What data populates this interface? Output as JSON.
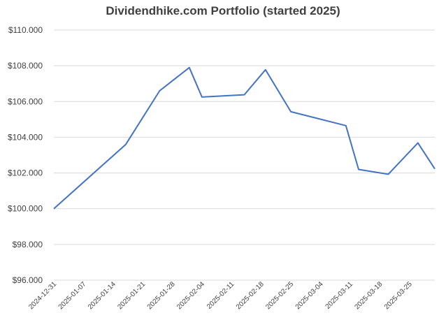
{
  "chart_data": {
    "type": "line",
    "title": "Dividendhike.com Portfolio (started 2025)",
    "xlabel": "",
    "ylabel": "",
    "ylim": [
      96000,
      110000
    ],
    "y_ticks": [
      96000,
      98000,
      100000,
      102000,
      104000,
      106000,
      108000,
      110000
    ],
    "y_tick_labels": [
      "$96.000",
      "$98.000",
      "$100.000",
      "$102.000",
      "$104.000",
      "$106.000",
      "$108.000",
      "$110.000"
    ],
    "x_range": [
      "2024-12-31",
      "2025-03-31"
    ],
    "x_tick_labels": [
      "2024-12-31",
      "2025-01-07",
      "2025-01-14",
      "2025-01-21",
      "2025-01-28",
      "2025-02-04",
      "2025-02-11",
      "2025-02-18",
      "2025-02-25",
      "2025-03-04",
      "2025-03-11",
      "2025-03-18",
      "2025-03-25"
    ],
    "grid": true,
    "legend": "none",
    "color": "#4472c4",
    "series": [
      {
        "x": [
          "2024-12-31",
          "2025-01-17",
          "2025-01-25",
          "2025-02-01",
          "2025-02-04",
          "2025-02-14",
          "2025-02-19",
          "2025-02-25",
          "2025-03-10",
          "2025-03-13",
          "2025-03-20",
          "2025-03-27",
          "2025-03-31"
        ],
        "y": [
          100000,
          103600,
          106600,
          107900,
          106250,
          106380,
          107780,
          105430,
          104650,
          102200,
          101930,
          103680,
          102230
        ]
      }
    ]
  }
}
